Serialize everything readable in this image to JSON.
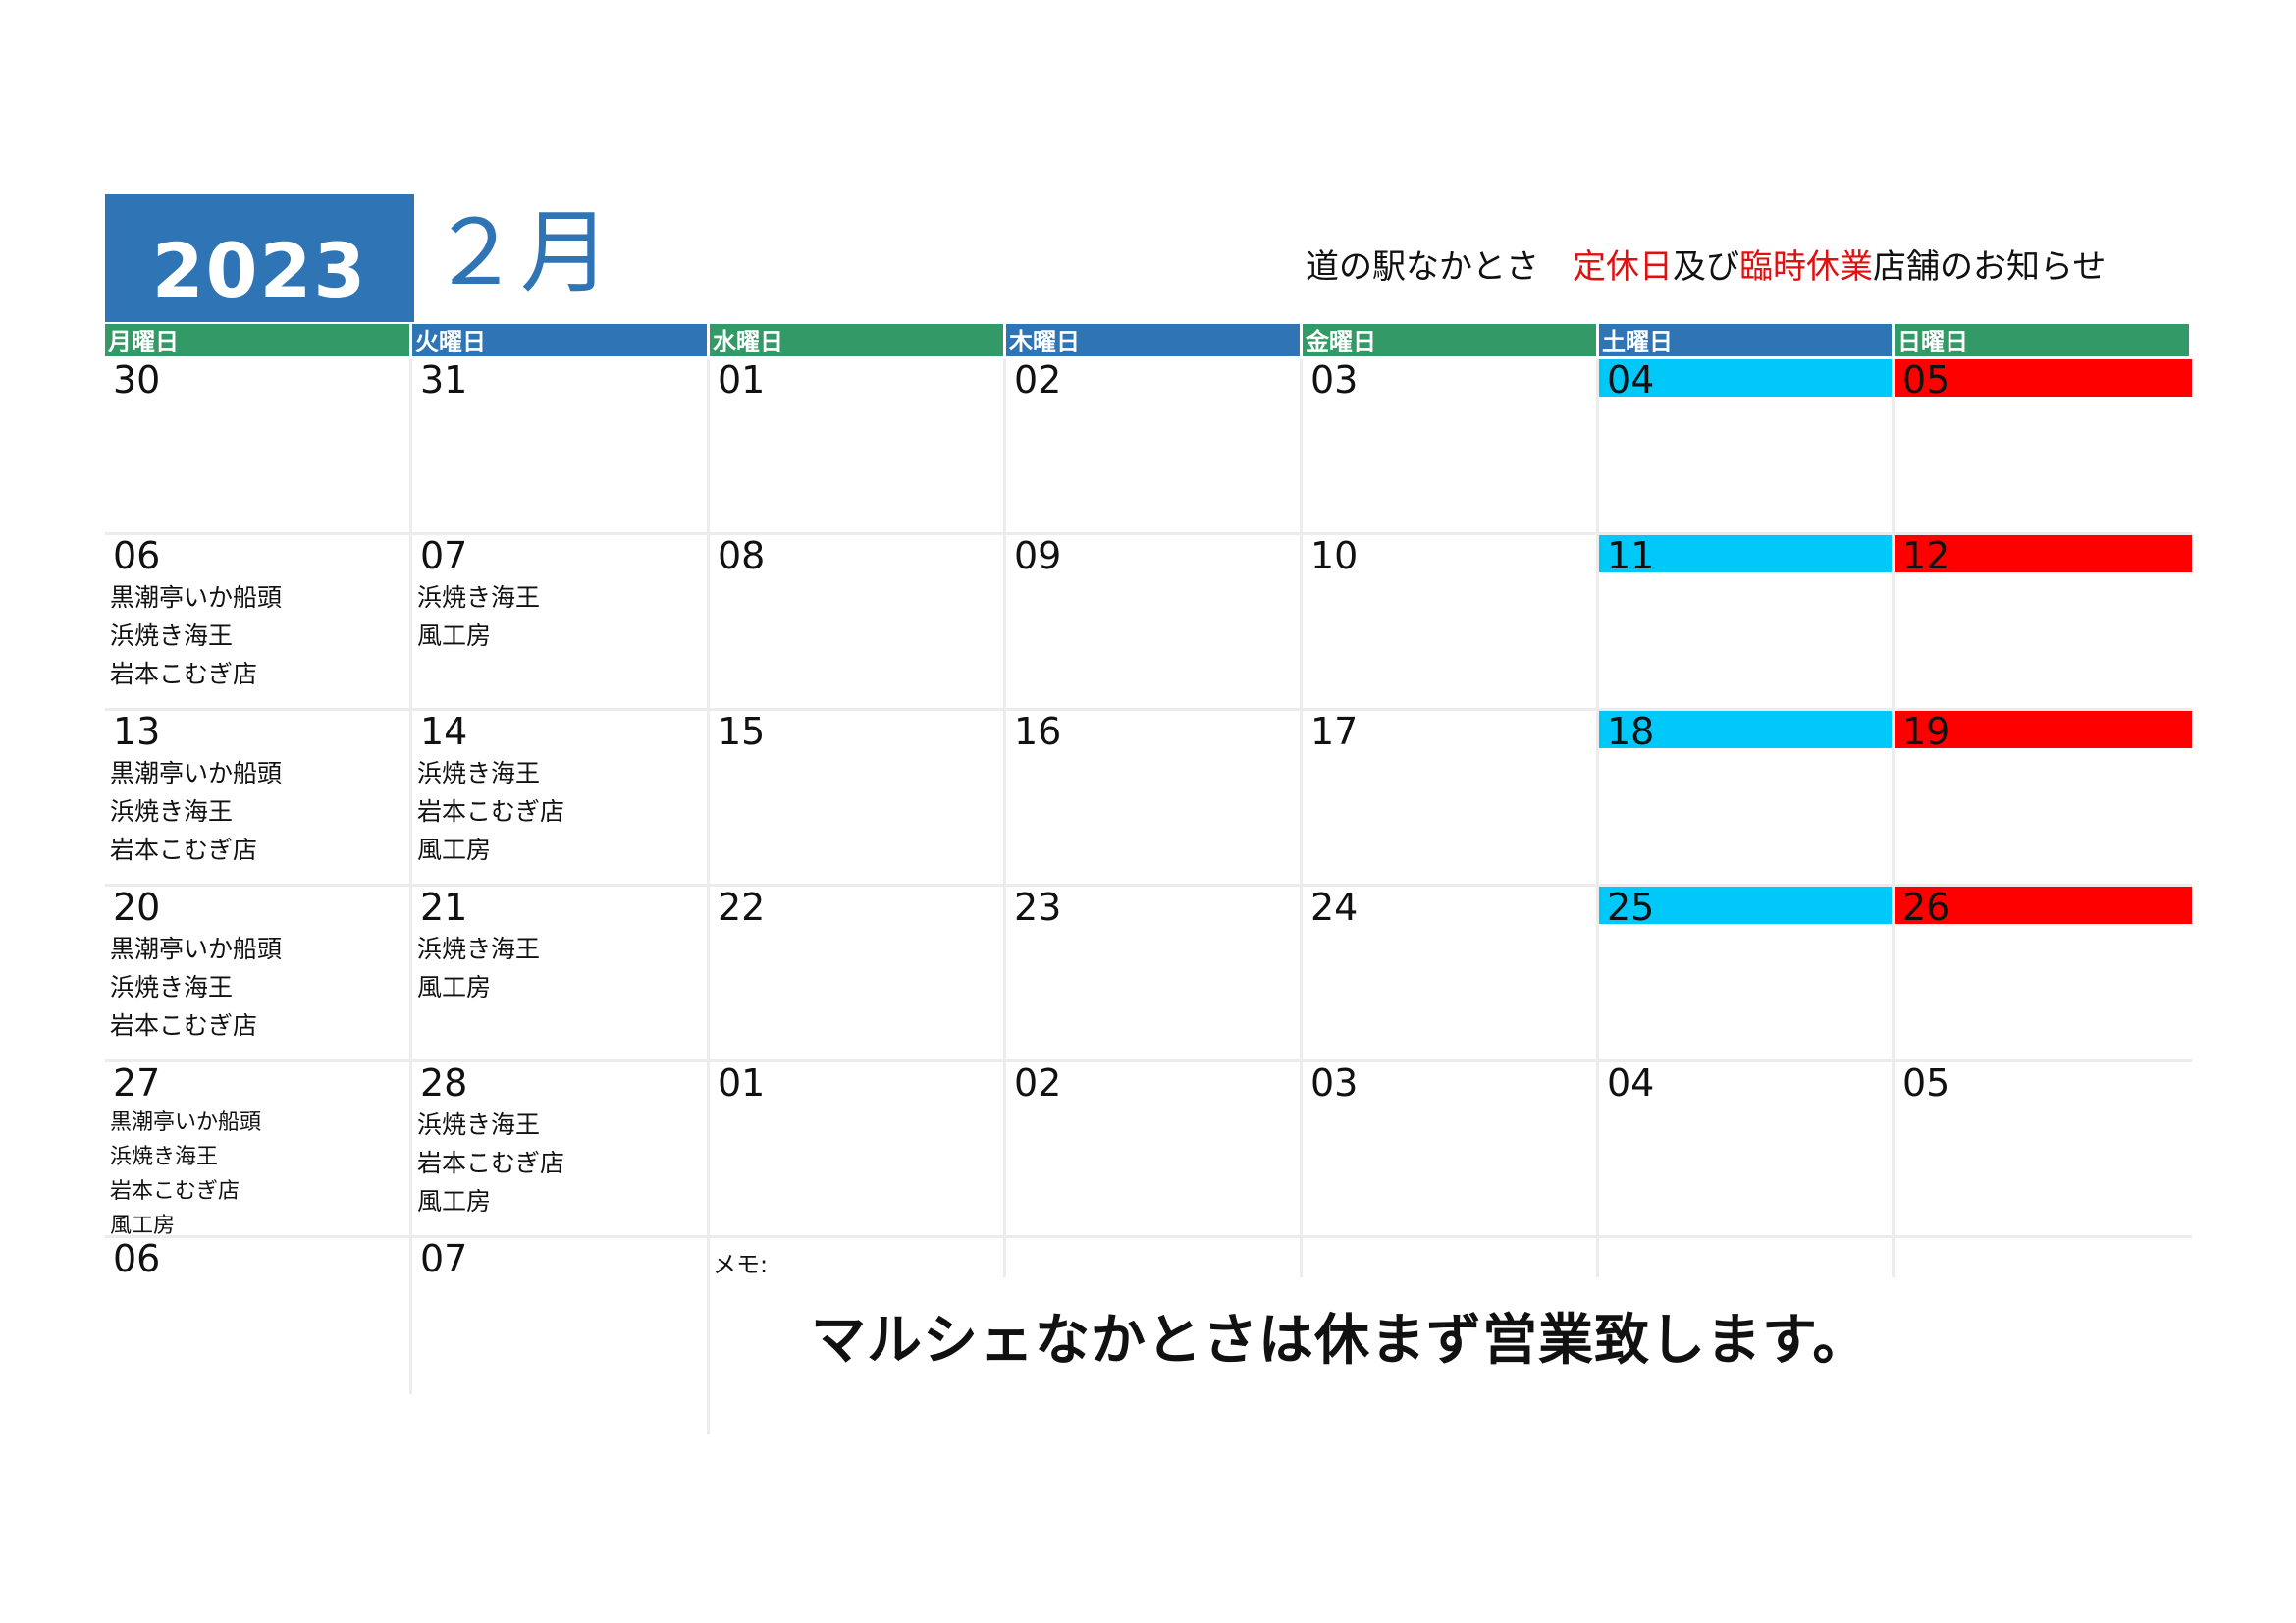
{
  "header": {
    "year": "2023",
    "month": "２月",
    "notice_prefix": "道の駅なかとさ　",
    "notice_red1": "定休日",
    "notice_mid": "及び",
    "notice_red2": "臨時休業",
    "notice_suffix": "店舗のお知らせ"
  },
  "weekdays": [
    "月曜日",
    "火曜日",
    "水曜日",
    "木曜日",
    "金曜日",
    "土曜日",
    "日曜日"
  ],
  "colors": {
    "header_blue": "#2f75b5",
    "header_green": "#339966",
    "saturday": "#00c8f8",
    "sunday": "#ff0000",
    "notice_red": "#e01010"
  },
  "weeks": [
    {
      "days": [
        {
          "num": "30",
          "shops": []
        },
        {
          "num": "31",
          "shops": []
        },
        {
          "num": "01",
          "shops": []
        },
        {
          "num": "02",
          "shops": []
        },
        {
          "num": "03",
          "shops": []
        },
        {
          "num": "04",
          "shops": [],
          "type": "sat"
        },
        {
          "num": "05",
          "shops": [],
          "type": "sun"
        }
      ]
    },
    {
      "days": [
        {
          "num": "06",
          "shops": [
            "黒潮亭いか船頭",
            "浜焼き海王",
            "岩本こむぎ店"
          ]
        },
        {
          "num": "07",
          "shops": [
            "浜焼き海王",
            "風工房"
          ]
        },
        {
          "num": "08",
          "shops": []
        },
        {
          "num": "09",
          "shops": []
        },
        {
          "num": "10",
          "shops": []
        },
        {
          "num": "11",
          "shops": [],
          "type": "sat"
        },
        {
          "num": "12",
          "shops": [],
          "type": "sun"
        }
      ]
    },
    {
      "days": [
        {
          "num": "13",
          "shops": [
            "黒潮亭いか船頭",
            "浜焼き海王",
            "岩本こむぎ店"
          ]
        },
        {
          "num": "14",
          "shops": [
            "浜焼き海王",
            "岩本こむぎ店",
            "風工房"
          ]
        },
        {
          "num": "15",
          "shops": []
        },
        {
          "num": "16",
          "shops": []
        },
        {
          "num": "17",
          "shops": []
        },
        {
          "num": "18",
          "shops": [],
          "type": "sat"
        },
        {
          "num": "19",
          "shops": [],
          "type": "sun"
        }
      ]
    },
    {
      "days": [
        {
          "num": "20",
          "shops": [
            "黒潮亭いか船頭",
            "浜焼き海王",
            "岩本こむぎ店"
          ]
        },
        {
          "num": "21",
          "shops": [
            "浜焼き海王",
            "風工房"
          ]
        },
        {
          "num": "22",
          "shops": []
        },
        {
          "num": "23",
          "shops": []
        },
        {
          "num": "24",
          "shops": []
        },
        {
          "num": "25",
          "shops": [],
          "type": "sat"
        },
        {
          "num": "26",
          "shops": [],
          "type": "sun"
        }
      ]
    },
    {
      "days": [
        {
          "num": "27",
          "shops": [
            "黒潮亭いか船頭",
            "浜焼き海王",
            "岩本こむぎ店",
            "風工房"
          ],
          "small": true
        },
        {
          "num": "28",
          "shops": [
            "浜焼き海王",
            "岩本こむぎ店",
            "風工房"
          ]
        },
        {
          "num": "01",
          "shops": []
        },
        {
          "num": "02",
          "shops": []
        },
        {
          "num": "03",
          "shops": []
        },
        {
          "num": "04",
          "shops": []
        },
        {
          "num": "05",
          "shops": []
        }
      ]
    },
    {
      "days": [
        {
          "num": "06",
          "shops": []
        },
        {
          "num": "07",
          "shops": []
        }
      ]
    }
  ],
  "memo_label": "メモ:",
  "banner": "マルシェなかとさは休まず営業致します。"
}
